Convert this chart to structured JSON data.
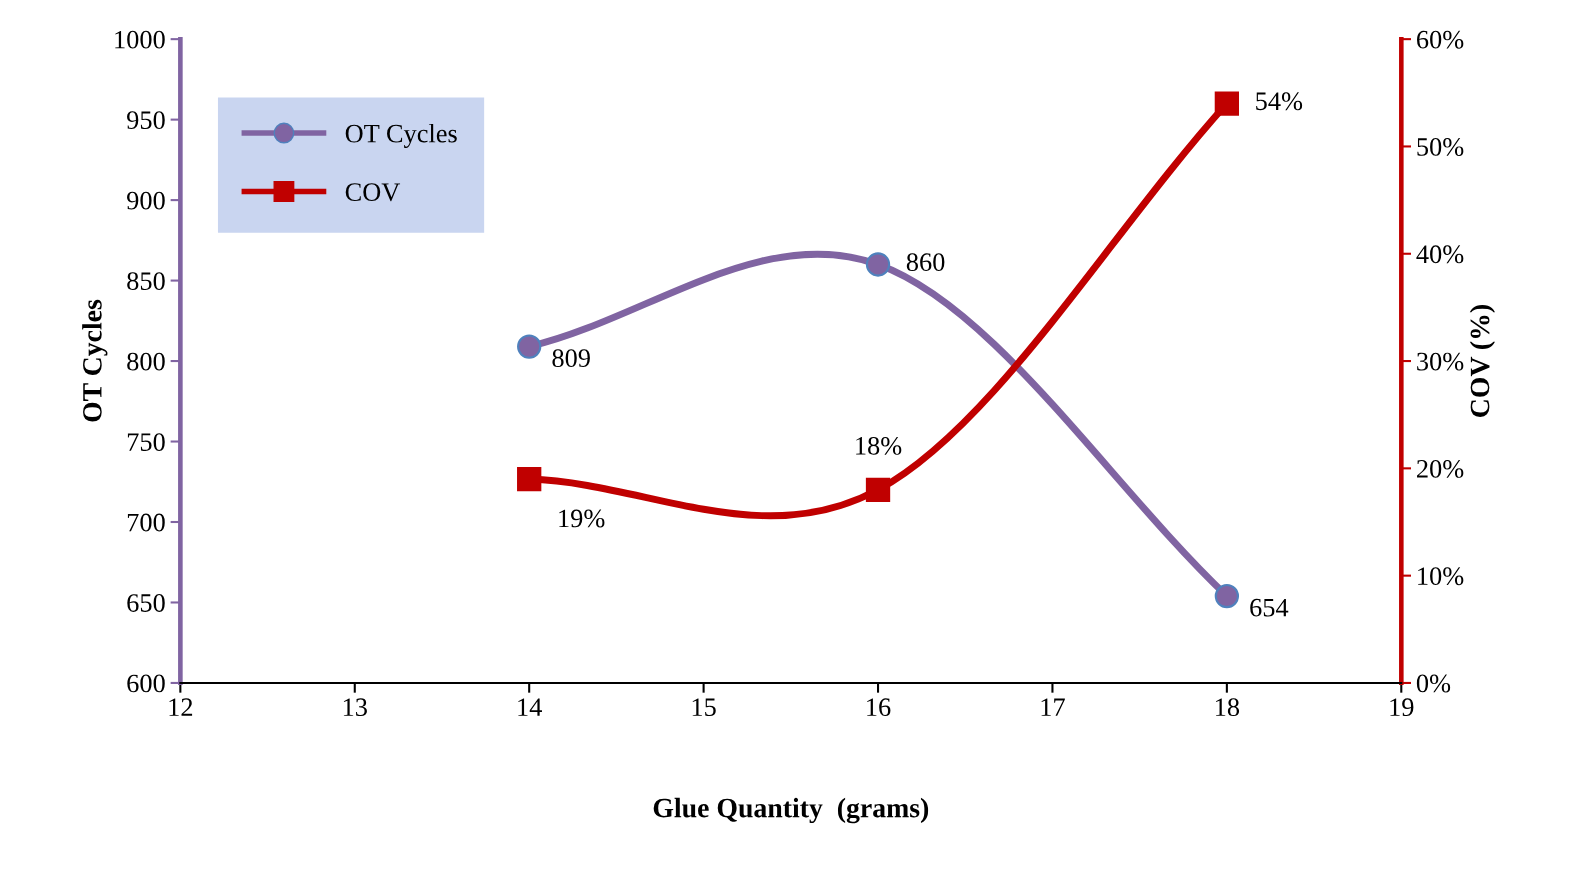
{
  "chart_data": {
    "type": "line",
    "xlabel": "Glue Quantity  (grams)",
    "ylabel": "OT Cycles",
    "y2label": "COV (%)",
    "x": [
      14,
      16,
      18
    ],
    "series": [
      {
        "name": "OT Cycles",
        "color": "#8064a2",
        "values": [
          809,
          860,
          654
        ],
        "marker": "circle",
        "value_labels": [
          "809",
          "860",
          "654"
        ]
      },
      {
        "name": "COV",
        "color": "#c00000",
        "values": [
          19,
          18,
          54
        ],
        "axis": "y2",
        "marker": "square",
        "value_labels": [
          "19%",
          "18%",
          "54%"
        ]
      }
    ],
    "xlim": [
      12,
      19
    ],
    "xticks": [
      12,
      13,
      14,
      15,
      16,
      17,
      18,
      19
    ],
    "ylim": [
      600,
      1000
    ],
    "yticks": [
      600,
      650,
      700,
      750,
      800,
      850,
      900,
      950,
      1000
    ],
    "y2lim": [
      0,
      60
    ],
    "y2ticks": [
      {
        "value": 0,
        "label": "0%"
      },
      {
        "value": 10,
        "label": "10%"
      },
      {
        "value": 20,
        "label": "20%"
      },
      {
        "value": 30,
        "label": "30%"
      },
      {
        "value": 40,
        "label": "40%"
      },
      {
        "value": 50,
        "label": "50%"
      },
      {
        "value": 60,
        "label": "60%"
      }
    ],
    "grid": false,
    "legend": "top left",
    "line_style": "solid"
  }
}
